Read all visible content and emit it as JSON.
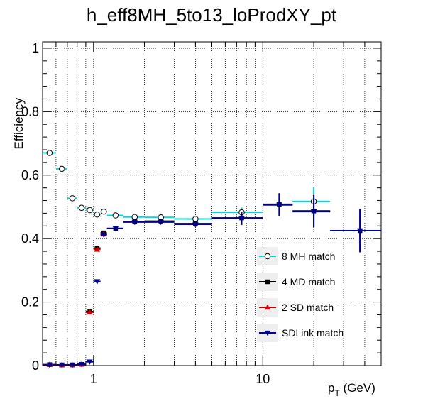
{
  "chart_data": {
    "type": "scatter",
    "title": "h_eff8MH_5to13_loProdXY_pt",
    "xlabel_main": "p",
    "xlabel_sub": "T",
    "xlabel_unit": " (GeV)",
    "ylabel": "Efficiency",
    "xscale": "log",
    "xlim": [
      0.5,
      50
    ],
    "ylim": [
      0,
      1.02
    ],
    "y_ticks": [
      0,
      0.2,
      0.4,
      0.6,
      0.8,
      1
    ],
    "y_tick_labels": [
      "0",
      "0.2",
      "0.4",
      "0.6",
      "0.8",
      "1"
    ],
    "x_tick_labels": [
      "1",
      "10"
    ],
    "grid": true,
    "legend_position": "right-middle",
    "series": [
      {
        "name": "8 MH match",
        "color": "#00d8d8",
        "marker": "open-circle",
        "points": [
          {
            "x": 0.55,
            "xl": 0.5,
            "xh": 0.6,
            "y": 0.67,
            "e": 0.005
          },
          {
            "x": 0.65,
            "xl": 0.6,
            "xh": 0.7,
            "y": 0.62,
            "e": 0.005
          },
          {
            "x": 0.75,
            "xl": 0.7,
            "xh": 0.8,
            "y": 0.527,
            "e": 0.005
          },
          {
            "x": 0.85,
            "xl": 0.8,
            "xh": 0.9,
            "y": 0.497,
            "e": 0.005
          },
          {
            "x": 0.95,
            "xl": 0.9,
            "xh": 1.0,
            "y": 0.49,
            "e": 0.005
          },
          {
            "x": 1.05,
            "xl": 1.0,
            "xh": 1.1,
            "y": 0.476,
            "e": 0.005
          },
          {
            "x": 1.15,
            "xl": 1.1,
            "xh": 1.2,
            "y": 0.485,
            "e": 0.005
          },
          {
            "x": 1.35,
            "xl": 1.2,
            "xh": 1.5,
            "y": 0.473,
            "e": 0.005
          },
          {
            "x": 1.75,
            "xl": 1.5,
            "xh": 2.0,
            "y": 0.468,
            "e": 0.005
          },
          {
            "x": 2.5,
            "xl": 2.0,
            "xh": 3.0,
            "y": 0.467,
            "e": 0.006
          },
          {
            "x": 4.0,
            "xl": 3.0,
            "xh": 5.0,
            "y": 0.462,
            "e": 0.008
          },
          {
            "x": 7.5,
            "xl": 5.0,
            "xh": 10.0,
            "y": 0.483,
            "e": 0.015
          },
          {
            "x": 20.0,
            "xl": 15.0,
            "xh": 25.0,
            "y": 0.517,
            "e": 0.045
          }
        ]
      },
      {
        "name": "4 MD match",
        "color": "#000000",
        "marker": "filled-square",
        "points": [
          {
            "x": 0.55,
            "xl": 0.5,
            "xh": 0.6,
            "y": 0.003,
            "e": 0.002
          },
          {
            "x": 0.65,
            "xl": 0.6,
            "xh": 0.7,
            "y": 0.002,
            "e": 0.002
          },
          {
            "x": 0.75,
            "xl": 0.7,
            "xh": 0.8,
            "y": 0.002,
            "e": 0.002
          },
          {
            "x": 0.85,
            "xl": 0.8,
            "xh": 0.9,
            "y": 0.004,
            "e": 0.002
          },
          {
            "x": 0.95,
            "xl": 0.9,
            "xh": 1.0,
            "y": 0.17,
            "e": 0.004
          },
          {
            "x": 1.05,
            "xl": 1.0,
            "xh": 1.1,
            "y": 0.37,
            "e": 0.005
          },
          {
            "x": 1.15,
            "xl": 1.1,
            "xh": 1.2,
            "y": 0.418,
            "e": 0.005
          },
          {
            "x": 1.35,
            "xl": 1.2,
            "xh": 1.5,
            "y": 0.432,
            "e": 0.005
          },
          {
            "x": 1.75,
            "xl": 1.5,
            "xh": 2.0,
            "y": 0.454,
            "e": 0.005
          },
          {
            "x": 2.5,
            "xl": 2.0,
            "xh": 3.0,
            "y": 0.455,
            "e": 0.006
          },
          {
            "x": 4.0,
            "xl": 3.0,
            "xh": 5.0,
            "y": 0.447,
            "e": 0.008
          },
          {
            "x": 7.5,
            "xl": 5.0,
            "xh": 10.0,
            "y": 0.465,
            "e": 0.02
          },
          {
            "x": 12.5,
            "xl": 10.0,
            "xh": 15.0,
            "y": 0.508,
            "e": 0.035
          },
          {
            "x": 20.0,
            "xl": 15.0,
            "xh": 25.0,
            "y": 0.487,
            "e": 0.05
          },
          {
            "x": 37.5,
            "xl": 25.0,
            "xh": 50.0,
            "y": 0.425,
            "e": 0.068
          }
        ]
      },
      {
        "name": "2 SD match",
        "color": "#cc0000",
        "marker": "filled-triangle-up",
        "points": [
          {
            "x": 0.55,
            "xl": 0.5,
            "xh": 0.6,
            "y": 0.003,
            "e": 0.002
          },
          {
            "x": 0.65,
            "xl": 0.6,
            "xh": 0.7,
            "y": 0.002,
            "e": 0.002
          },
          {
            "x": 0.75,
            "xl": 0.7,
            "xh": 0.8,
            "y": 0.002,
            "e": 0.002
          },
          {
            "x": 0.85,
            "xl": 0.8,
            "xh": 0.9,
            "y": 0.004,
            "e": 0.002
          },
          {
            "x": 0.95,
            "xl": 0.9,
            "xh": 1.0,
            "y": 0.168,
            "e": 0.004
          },
          {
            "x": 1.05,
            "xl": 1.0,
            "xh": 1.1,
            "y": 0.366,
            "e": 0.005
          },
          {
            "x": 1.15,
            "xl": 1.1,
            "xh": 1.2,
            "y": 0.414,
            "e": 0.005
          }
        ]
      },
      {
        "name": "SDLink match",
        "color": "#000090",
        "marker": "filled-triangle-down",
        "points": [
          {
            "x": 0.55,
            "xl": 0.5,
            "xh": 0.6,
            "y": 0.002,
            "e": 0.002
          },
          {
            "x": 0.65,
            "xl": 0.6,
            "xh": 0.7,
            "y": 0.002,
            "e": 0.002
          },
          {
            "x": 0.75,
            "xl": 0.7,
            "xh": 0.8,
            "y": 0.002,
            "e": 0.002
          },
          {
            "x": 0.85,
            "xl": 0.8,
            "xh": 0.9,
            "y": 0.004,
            "e": 0.002
          },
          {
            "x": 0.95,
            "xl": 0.9,
            "xh": 1.0,
            "y": 0.012,
            "e": 0.003
          },
          {
            "x": 1.05,
            "xl": 1.0,
            "xh": 1.1,
            "y": 0.265,
            "e": 0.005
          },
          {
            "x": 1.15,
            "xl": 1.1,
            "xh": 1.2,
            "y": 0.412,
            "e": 0.005
          },
          {
            "x": 1.35,
            "xl": 1.2,
            "xh": 1.5,
            "y": 0.432,
            "e": 0.005
          },
          {
            "x": 1.75,
            "xl": 1.5,
            "xh": 2.0,
            "y": 0.452,
            "e": 0.005
          },
          {
            "x": 2.5,
            "xl": 2.0,
            "xh": 3.0,
            "y": 0.452,
            "e": 0.006
          },
          {
            "x": 4.0,
            "xl": 3.0,
            "xh": 5.0,
            "y": 0.445,
            "e": 0.008
          },
          {
            "x": 7.5,
            "xl": 5.0,
            "xh": 10.0,
            "y": 0.463,
            "e": 0.02
          },
          {
            "x": 12.5,
            "xl": 10.0,
            "xh": 15.0,
            "y": 0.506,
            "e": 0.035
          },
          {
            "x": 20.0,
            "xl": 15.0,
            "xh": 25.0,
            "y": 0.485,
            "e": 0.05
          },
          {
            "x": 37.5,
            "xl": 25.0,
            "xh": 50.0,
            "y": 0.425,
            "e": 0.068
          }
        ]
      }
    ]
  }
}
